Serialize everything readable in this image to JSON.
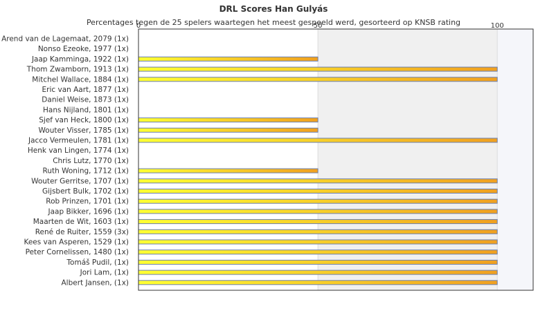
{
  "chart_data": {
    "type": "bar",
    "orientation": "horizontal",
    "title": "DRL Scores Han Gulyás",
    "subtitle": "Percentages tegen de 25 spelers waartegen het meest gespeeld werd, gesorteerd op KNSB rating",
    "xlim": [
      0,
      110
    ],
    "x_ticks": [
      0,
      50,
      100
    ],
    "x_tick_labels": [
      "0",
      "50",
      "100"
    ],
    "tick_position": "top",
    "grid": true,
    "categories": [
      "Arend van de Lagemaat, 2079 (1x)",
      "Nonso Ezeoke, 1977 (1x)",
      "Jaap Kamminga, 1922 (1x)",
      "Thom Zwamborn, 1913 (1x)",
      "Mitchel Wallace, 1884 (1x)",
      "Eric van Aart, 1877 (1x)",
      "Daniel Weise, 1873 (1x)",
      "Hans Nijland, 1801 (1x)",
      "Sjef van Heck, 1800 (1x)",
      "Wouter Visser, 1785 (1x)",
      "Jacco Vermeulen, 1781 (1x)",
      "Henk van Lingen, 1774 (1x)",
      "Chris Lutz, 1770 (1x)",
      "Ruth Woning, 1712 (1x)",
      "Wouter Gerritse, 1707 (1x)",
      "Gijsbert Bulk, 1702 (1x)",
      "Rob Prinzen, 1701 (1x)",
      "Jaap Bikker, 1696 (1x)",
      "Maarten de Wit, 1603 (1x)",
      "René de Ruiter, 1559 (3x)",
      "Kees van Asperen, 1529 (1x)",
      "Peter Cornelissen, 1480 (1x)",
      "Tomáš Pudil,  (1x)",
      "Jori Lam,  (1x)",
      "Albert Jansen,  (1x)"
    ],
    "values": [
      0,
      0,
      50,
      100,
      100,
      0,
      0,
      0,
      50,
      50,
      100,
      0,
      0,
      50,
      100,
      100,
      100,
      100,
      100,
      100,
      100,
      100,
      100,
      100,
      100
    ],
    "colors": {
      "bar_start": "#ffff33",
      "bar_end": "#f0a020",
      "bar_border": "#6a7fb0",
      "band": "#f0f0f0",
      "band_edge": "#f5f6fa",
      "grid": "#dddddd",
      "axis": "#333333"
    }
  }
}
